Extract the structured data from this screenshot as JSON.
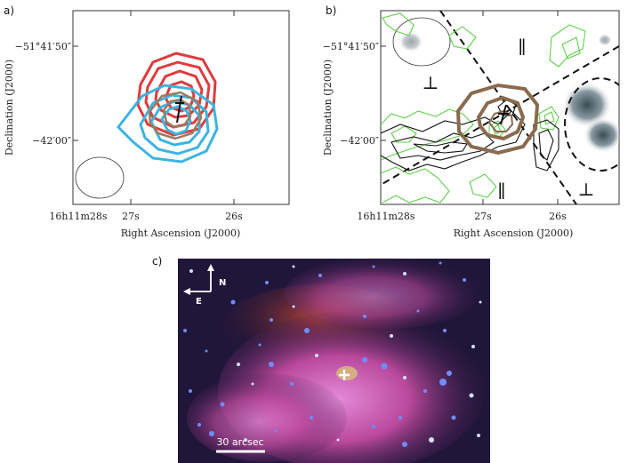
{
  "panels": {
    "a": {
      "label": "a)",
      "y_ticks": [
        "−51°41′50″",
        "−42′00″"
      ],
      "x_ticks": [
        "16h11m28s",
        "27s",
        "26s"
      ],
      "xlabel": "Right Ascension (J2000)",
      "ylabel": "Declination (J2000)",
      "contour_colors": {
        "red": "#e03a3e",
        "cyan": "#3cb4e0",
        "brown": "#9c7a5e"
      }
    },
    "b": {
      "label": "b)",
      "y_ticks": [
        "−51°41′50″",
        "−42′00″"
      ],
      "x_ticks": [
        "16h11m28s",
        "27s",
        "26s"
      ],
      "xlabel": "Right Ascension (J2000)",
      "ylabel": "Declination (J2000)",
      "symbols": {
        "parallel": "∥",
        "perp": "⊥"
      },
      "contour_colors": {
        "green": "#5fd14a",
        "black": "#111111",
        "brown": "#8a6a4e"
      }
    },
    "c": {
      "label": "c)",
      "compass_n": "N",
      "compass_e": "E",
      "scalebar": "30 arcsec"
    }
  }
}
